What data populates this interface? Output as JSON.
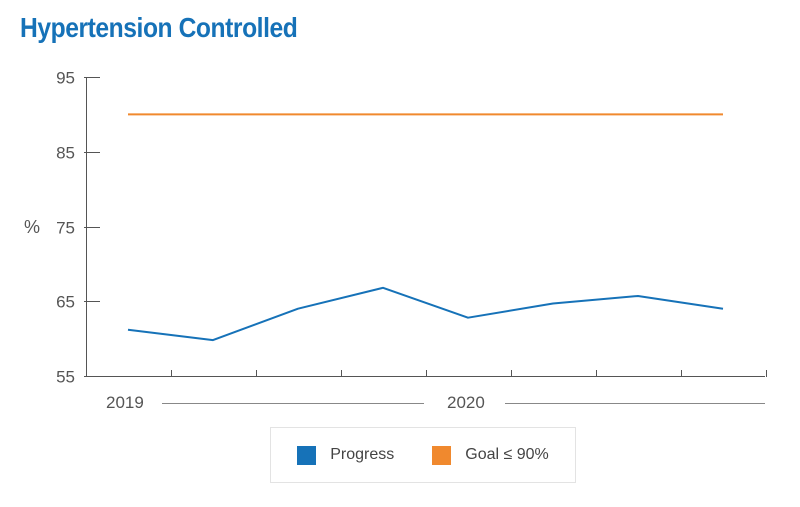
{
  "chart_data": {
    "type": "line",
    "title": "Hypertension Controlled",
    "ylabel": "%",
    "xlabel": "",
    "ylim": [
      55,
      95
    ],
    "yticks": [
      55,
      65,
      75,
      85,
      95
    ],
    "x_group_labels": [
      "2019",
      "2020"
    ],
    "grid": false,
    "legend_position": "bottom",
    "series": [
      {
        "name": "Progress",
        "color": "#1672b8",
        "values": [
          61.2,
          59.8,
          64.0,
          66.8,
          62.8,
          64.7,
          65.7,
          64.0
        ]
      },
      {
        "name": "Goal ≤ 90%",
        "color": "#f0892e",
        "values": [
          90,
          90,
          90,
          90,
          90,
          90,
          90,
          90
        ]
      }
    ]
  },
  "colors": {
    "title": "#1672b8",
    "axis": "#555555"
  }
}
